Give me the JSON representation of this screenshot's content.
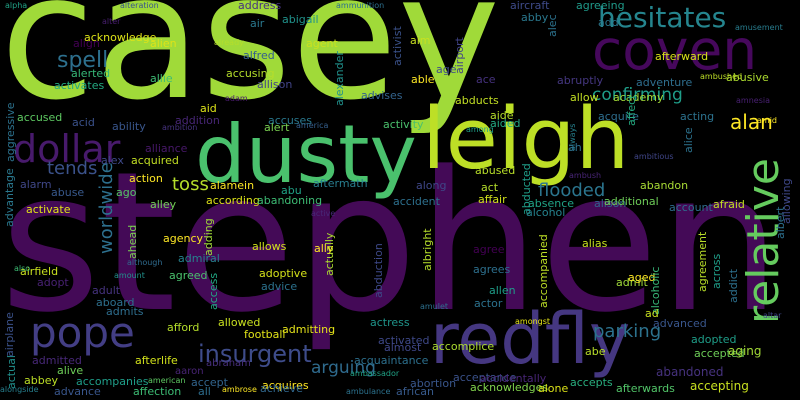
{
  "words": [
    {
      "text": "casey",
      "color": "#a0da39"
    },
    {
      "text": "stephen",
      "color": "#440a57"
    },
    {
      "text": "dusty",
      "color": "#4ac16d"
    },
    {
      "text": "leigh",
      "color": "#bddf26"
    },
    {
      "text": "coven",
      "color": "#46085c"
    },
    {
      "text": "redfly",
      "color": "#453781"
    },
    {
      "text": "pope",
      "color": "#433e85"
    },
    {
      "text": "hesitates",
      "color": "#25858e"
    },
    {
      "text": "dollar",
      "color": "#481a6c"
    },
    {
      "text": "relative",
      "color": "#65cb5e"
    },
    {
      "text": "insurgent",
      "color": "#3e4c8a"
    },
    {
      "text": "spell",
      "color": "#2d708e"
    },
    {
      "text": "toss",
      "color": "#b5de2b"
    },
    {
      "text": "tends",
      "color": "#3b528b"
    },
    {
      "text": "flooded",
      "color": "#2b758e"
    },
    {
      "text": "confirming",
      "color": "#1f9e89"
    },
    {
      "text": "parking",
      "color": "#2c728e"
    },
    {
      "text": "arguing",
      "color": "#2f6b8e"
    },
    {
      "text": "worldwide",
      "color": "#2d708e"
    },
    {
      "text": "alan",
      "color": "#fde725"
    },
    {
      "text": "accepting",
      "color": "#c8e020"
    },
    {
      "text": "abandoned",
      "color": "#46327e"
    },
    {
      "text": "accepted",
      "color": "#6ece58"
    },
    {
      "text": "aging",
      "color": "#a2da37"
    },
    {
      "text": "acceptance",
      "color": "#3b528b"
    },
    {
      "text": "acknowledges",
      "color": "#81d34d"
    },
    {
      "text": "accidentally",
      "color": "#482576"
    },
    {
      "text": "alone",
      "color": "#dde318"
    },
    {
      "text": "afterwards",
      "color": "#52c569"
    },
    {
      "text": "accepts",
      "color": "#29af7f"
    },
    {
      "text": "abortion",
      "color": "#39568c"
    },
    {
      "text": "african",
      "color": "#375a8c"
    },
    {
      "text": "abe",
      "color": "#b8de29"
    },
    {
      "text": "almost",
      "color": "#3f4788"
    },
    {
      "text": "accomplice",
      "color": "#addc30"
    },
    {
      "text": "actress",
      "color": "#1f958b"
    },
    {
      "text": "activated",
      "color": "#3e4989"
    },
    {
      "text": "ambassador",
      "color": "#20a386"
    },
    {
      "text": "ambulance",
      "color": "#2c728e"
    },
    {
      "text": "acquaintance",
      "color": "#2d708e"
    },
    {
      "text": "acquires",
      "color": "#fde725"
    },
    {
      "text": "achieve",
      "color": "#31688e"
    },
    {
      "text": "accept",
      "color": "#32658e"
    },
    {
      "text": "aaron",
      "color": "#482475"
    },
    {
      "text": "abraham",
      "color": "#472f7d"
    },
    {
      "text": "affection",
      "color": "#3dbc74"
    },
    {
      "text": "all",
      "color": "#2e6e8e"
    },
    {
      "text": "ambrose",
      "color": "#fde725"
    },
    {
      "text": "american",
      "color": "#5ec962"
    },
    {
      "text": "advance",
      "color": "#39568c"
    },
    {
      "text": "accompanies",
      "color": "#1f9e89"
    },
    {
      "text": "abbey",
      "color": "#bddf26"
    },
    {
      "text": "afterlife",
      "color": "#d2e21b"
    },
    {
      "text": "admitted",
      "color": "#482878"
    },
    {
      "text": "alive",
      "color": "#6ece58"
    },
    {
      "text": "alongside",
      "color": "#277f8e"
    },
    {
      "text": "actual",
      "color": "#21908d"
    },
    {
      "text": "airplane",
      "color": "#3b528b"
    },
    {
      "text": "alpha",
      "color": "#20a386"
    },
    {
      "text": "aggressive",
      "color": "#2c728e"
    },
    {
      "text": "alter",
      "color": "#481f70"
    },
    {
      "text": "alteration",
      "color": "#39568c"
    },
    {
      "text": "ammunition",
      "color": "#2d708e"
    },
    {
      "text": "address",
      "color": "#46337f"
    },
    {
      "text": "abigail",
      "color": "#20938c"
    },
    {
      "text": "agent",
      "color": "#cae11f"
    },
    {
      "text": "aircraft",
      "color": "#3e4a89"
    },
    {
      "text": "abby",
      "color": "#2a788e"
    },
    {
      "text": "agreeing",
      "color": "#1f9a8a"
    },
    {
      "text": "add",
      "color": "#2a788e"
    },
    {
      "text": "amusement",
      "color": "#287d8e"
    },
    {
      "text": "afterward",
      "color": "#d8e219"
    },
    {
      "text": "alec",
      "color": "#2c728e"
    },
    {
      "text": "acknowledge",
      "color": "#dde318"
    },
    {
      "text": "air",
      "color": "#2a788e"
    },
    {
      "text": "align",
      "color": "#440154"
    },
    {
      "text": "alien",
      "color": "#dde318"
    },
    {
      "text": "alfred",
      "color": "#34608d"
    },
    {
      "text": "already",
      "color": "#b5de2b"
    },
    {
      "text": "aim",
      "color": "#c8e020"
    },
    {
      "text": "activist",
      "color": "#3b528b"
    },
    {
      "text": "airport",
      "color": "#414487"
    },
    {
      "text": "allie",
      "color": "#3dbc74"
    },
    {
      "text": "alerted",
      "color": "#37b878"
    },
    {
      "text": "accusing",
      "color": "#b5de2b"
    },
    {
      "text": "allison",
      "color": "#414487"
    },
    {
      "text": "able",
      "color": "#fde725"
    },
    {
      "text": "age",
      "color": "#3e4c8a"
    },
    {
      "text": "ace",
      "color": "#46327e"
    },
    {
      "text": "abruptly",
      "color": "#453781"
    },
    {
      "text": "adventure",
      "color": "#2e6e8e"
    },
    {
      "text": "abusive",
      "color": "#addc30"
    },
    {
      "text": "ambushed",
      "color": "#bddf26"
    },
    {
      "text": "activates",
      "color": "#24aa83"
    },
    {
      "text": "adam",
      "color": "#481a6c"
    },
    {
      "text": "aid",
      "color": "#dde318"
    },
    {
      "text": "alexander",
      "color": "#21918c"
    },
    {
      "text": "advises",
      "color": "#33638d"
    },
    {
      "text": "abducts",
      "color": "#c2df23"
    },
    {
      "text": "allow",
      "color": "#c2df23"
    },
    {
      "text": "academy",
      "color": "#a2da37"
    },
    {
      "text": "amnesia",
      "color": "#482071"
    },
    {
      "text": "accused",
      "color": "#5ec962"
    },
    {
      "text": "acid",
      "color": "#3b528b"
    },
    {
      "text": "ability",
      "color": "#39568c"
    },
    {
      "text": "addition",
      "color": "#482677"
    },
    {
      "text": "ambition",
      "color": "#46337f"
    },
    {
      "text": "accuses",
      "color": "#2a788e"
    },
    {
      "text": "alert",
      "color": "#7ad151"
    },
    {
      "text": "america",
      "color": "#355f8d"
    },
    {
      "text": "activity",
      "color": "#4ac16d"
    },
    {
      "text": "aide",
      "color": "#b5de2b"
    },
    {
      "text": "aided",
      "color": "#24aa83"
    },
    {
      "text": "among",
      "color": "#1fa088"
    },
    {
      "text": "acquire",
      "color": "#2e6e8e"
    },
    {
      "text": "acting",
      "color": "#2c728e"
    },
    {
      "text": "amid",
      "color": "#fde725"
    },
    {
      "text": "always",
      "color": "#26818e"
    },
    {
      "text": "affect",
      "color": "#25ab82"
    },
    {
      "text": "alice",
      "color": "#2c728e"
    },
    {
      "text": "ambitious",
      "color": "#404688"
    },
    {
      "text": "ah",
      "color": "#2d708e"
    },
    {
      "text": "ambush",
      "color": "#482576"
    },
    {
      "text": "alliance",
      "color": "#48186a"
    },
    {
      "text": "alex",
      "color": "#3e4989"
    },
    {
      "text": "acquired",
      "color": "#c2df23"
    },
    {
      "text": "action",
      "color": "#fde725"
    },
    {
      "text": "alarm",
      "color": "#3f4788"
    },
    {
      "text": "advantage",
      "color": "#2a788e"
    },
    {
      "text": "abuse",
      "color": "#38598c"
    },
    {
      "text": "ago",
      "color": "#56c667"
    },
    {
      "text": "activate",
      "color": "#e2e418"
    },
    {
      "text": "alley",
      "color": "#73d056"
    },
    {
      "text": "according",
      "color": "#dde318"
    },
    {
      "text": "alamein",
      "color": "#fde725"
    },
    {
      "text": "abu",
      "color": "#20a386"
    },
    {
      "text": "aftermath",
      "color": "#287d8e"
    },
    {
      "text": "abandoning",
      "color": "#3dbc74"
    },
    {
      "text": "accident",
      "color": "#2d708e"
    },
    {
      "text": "along",
      "color": "#3f4788"
    },
    {
      "text": "act",
      "color": "#b5de2b"
    },
    {
      "text": "abused",
      "color": "#b8de29"
    },
    {
      "text": "affair",
      "color": "#d0e11c"
    },
    {
      "text": "absence",
      "color": "#20a386"
    },
    {
      "text": "abducted",
      "color": "#1f9e89"
    },
    {
      "text": "alcohol",
      "color": "#25838e"
    },
    {
      "text": "alison",
      "color": "#33638d"
    },
    {
      "text": "abandon",
      "color": "#a8db34"
    },
    {
      "text": "additional",
      "color": "#6ece58"
    },
    {
      "text": "account",
      "color": "#2f6c8e"
    },
    {
      "text": "afraid",
      "color": "#c2df23"
    },
    {
      "text": "allowing",
      "color": "#3f4889"
    },
    {
      "text": "albert",
      "color": "#2d708e"
    },
    {
      "text": "agency",
      "color": "#fde725"
    },
    {
      "text": "adding",
      "color": "#a0da39"
    },
    {
      "text": "allows",
      "color": "#d0e11c"
    },
    {
      "text": "actually",
      "color": "#addc30"
    },
    {
      "text": "ally",
      "color": "#fde725"
    },
    {
      "text": "active",
      "color": "#482878"
    },
    {
      "text": "abduction",
      "color": "#3e4989"
    },
    {
      "text": "albright",
      "color": "#b5de2b"
    },
    {
      "text": "admiral",
      "color": "#26828e"
    },
    {
      "text": "agreed",
      "color": "#4ac16d"
    },
    {
      "text": "adoptive",
      "color": "#d5e21a"
    },
    {
      "text": "advice",
      "color": "#2c728e"
    },
    {
      "text": "access",
      "color": "#22a884"
    },
    {
      "text": "ahead",
      "color": "#7ad151"
    },
    {
      "text": "airfield",
      "color": "#c8e020"
    },
    {
      "text": "also",
      "color": "#3dbc74"
    },
    {
      "text": "adopt",
      "color": "#482173"
    },
    {
      "text": "adult",
      "color": "#46337f"
    },
    {
      "text": "amount",
      "color": "#21918c"
    },
    {
      "text": "although",
      "color": "#2f6b8e"
    },
    {
      "text": "aboard",
      "color": "#2d708e"
    },
    {
      "text": "admits",
      "color": "#2e6e8e"
    },
    {
      "text": "afford",
      "color": "#b5de2b"
    },
    {
      "text": "allowed",
      "color": "#c8e020"
    },
    {
      "text": "football",
      "color": "#e2e418"
    },
    {
      "text": "admitting",
      "color": "#e5e419"
    },
    {
      "text": "agree",
      "color": "#440154"
    },
    {
      "text": "agrees",
      "color": "#2d708e"
    },
    {
      "text": "allen",
      "color": "#1f9e89"
    },
    {
      "text": "actor",
      "color": "#2c728e"
    },
    {
      "text": "alias",
      "color": "#c8e020"
    },
    {
      "text": "accompanied",
      "color": "#bddf26"
    },
    {
      "text": "admit",
      "color": "#a0da39"
    },
    {
      "text": "aged",
      "color": "#fde725"
    },
    {
      "text": "alcoholic",
      "color": "#37b878"
    },
    {
      "text": "agreement",
      "color": "#b8de29"
    },
    {
      "text": "across",
      "color": "#1f9e89"
    },
    {
      "text": "addict",
      "color": "#2d708e"
    },
    {
      "text": "ad",
      "color": "#c8e020"
    },
    {
      "text": "advanced",
      "color": "#39568c"
    },
    {
      "text": "adopted",
      "color": "#1f9e89"
    },
    {
      "text": "altar",
      "color": "#3f4788"
    },
    {
      "text": "amulet",
      "color": "#2d708e"
    },
    {
      "text": "amongst",
      "color": "#e5e419"
    }
  ]
}
